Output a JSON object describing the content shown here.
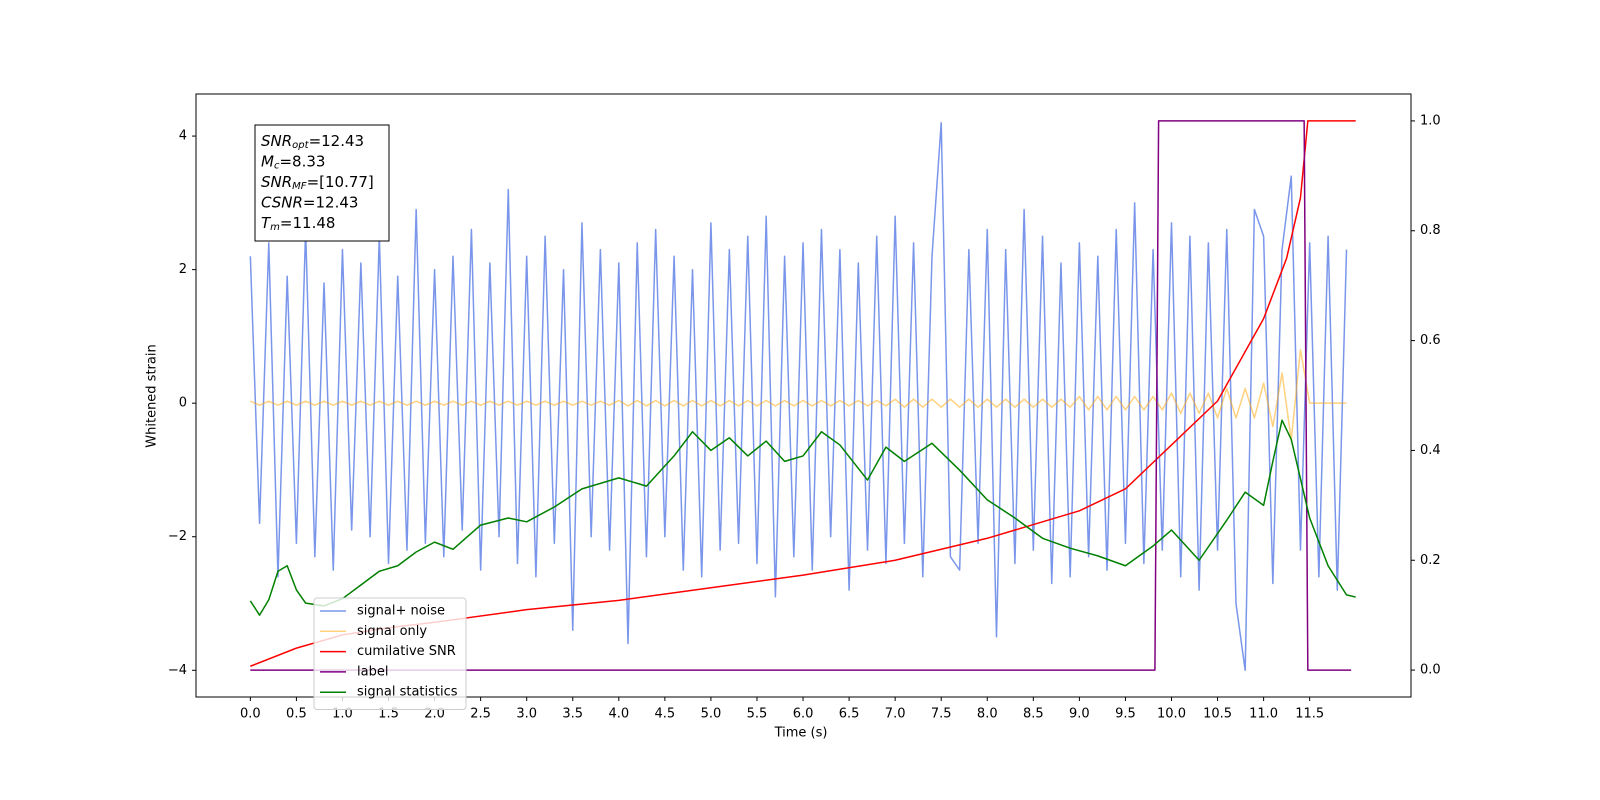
{
  "chart_data": {
    "type": "line",
    "xlabel": "Time (s)",
    "ylabel": "Whitened strain",
    "xlim": [
      -0.59,
      12.6
    ],
    "ylim": [
      -4.4,
      4.63
    ],
    "y2lim": [
      -0.049,
      1.049
    ],
    "xticks": [
      {
        "value": 0,
        "label": "0.0"
      },
      0.5,
      {
        "value": 1,
        "label": "1.0"
      },
      1.5,
      {
        "value": 2,
        "label": "2.0"
      },
      2.5,
      {
        "value": 3,
        "label": "3.0"
      },
      3.5,
      {
        "value": 4,
        "label": "4.0"
      },
      4.5,
      {
        "value": 5,
        "label": "5.0"
      },
      5.5,
      {
        "value": 6,
        "label": "6.0"
      },
      6.5,
      {
        "value": 7,
        "label": "7.0"
      },
      7.5,
      {
        "value": 8,
        "label": "8.0"
      },
      8.5,
      {
        "value": 9,
        "label": "9.0"
      },
      9.5,
      {
        "value": 10,
        "label": "10.0"
      },
      10.5,
      {
        "value": 11,
        "label": "11.0"
      },
      11.5
    ],
    "yticks": [
      {
        "value": -4,
        "label": "−4"
      },
      {
        "value": -2,
        "label": "−2"
      },
      0,
      2,
      4
    ],
    "y2ticks": [
      {
        "value": 0,
        "label": "0.0"
      },
      0.2,
      0.4,
      0.6,
      0.8,
      {
        "value": 1,
        "label": "1.0"
      }
    ],
    "legend": "lower left",
    "annotations": [
      {
        "base": "SNR",
        "sub": "opt",
        "text": "=12.43"
      },
      {
        "base": "M",
        "sub": "c",
        "text": "=8.33"
      },
      {
        "base": "SNR",
        "sub": "MF",
        "text": "=[10.77]"
      },
      {
        "base": "CSNR",
        "text": "=12.43"
      },
      {
        "base": "T",
        "sub": "m",
        "text": "=11.48"
      }
    ],
    "series": [
      {
        "name": "signal+ noise",
        "color": "#4169e1",
        "opacity": 0.7,
        "x": [
          0,
          0.1,
          0.2,
          0.3,
          0.4,
          0.5,
          0.6,
          0.7,
          0.8,
          0.9,
          1,
          1.1,
          1.2,
          1.3,
          1.4,
          1.5,
          1.6,
          1.7,
          1.8,
          1.9,
          2,
          2.1,
          2.2,
          2.3,
          2.4,
          2.5,
          2.6,
          2.7,
          2.8,
          2.9,
          3,
          3.1,
          3.2,
          3.3,
          3.4,
          3.5,
          3.6,
          3.7,
          3.8,
          3.9,
          4,
          4.1,
          4.2,
          4.3,
          4.4,
          4.5,
          4.6,
          4.7,
          4.8,
          4.9,
          5,
          5.1,
          5.2,
          5.3,
          5.4,
          5.5,
          5.6,
          5.7,
          5.8,
          5.9,
          6,
          6.1,
          6.2,
          6.3,
          6.4,
          6.5,
          6.6,
          6.7,
          6.8,
          6.9,
          7,
          7.1,
          7.2,
          7.3,
          7.4,
          7.5,
          7.6,
          7.7,
          7.8,
          7.9,
          8,
          8.1,
          8.2,
          8.3,
          8.4,
          8.5,
          8.6,
          8.7,
          8.8,
          8.9,
          9,
          9.1,
          9.2,
          9.3,
          9.4,
          9.5,
          9.6,
          9.7,
          9.8,
          9.9,
          10,
          10.1,
          10.2,
          10.3,
          10.4,
          10.5,
          10.6,
          10.7,
          10.8,
          10.9,
          11,
          11.1,
          11.2,
          11.3,
          11.4,
          11.5,
          11.6,
          11.7,
          11.8,
          11.9
        ],
        "values": [
          2.2,
          -1.8,
          2.4,
          -2.6,
          1.9,
          -2.1,
          2.6,
          -2.3,
          1.8,
          -2.5,
          2.3,
          -1.9,
          2.1,
          -2.0,
          2.5,
          -2.4,
          1.9,
          -2.2,
          2.9,
          -2.1,
          2.0,
          -2.3,
          2.2,
          -1.9,
          2.6,
          -2.5,
          2.1,
          -2.0,
          3.2,
          -2.4,
          2.2,
          -2.6,
          2.5,
          -2.1,
          2.0,
          -3.4,
          2.7,
          -2.0,
          2.3,
          -2.2,
          2.1,
          -3.6,
          2.4,
          -2.3,
          2.6,
          -2.0,
          2.2,
          -2.5,
          2.0,
          -2.6,
          2.7,
          -2.2,
          2.3,
          -2.1,
          2.5,
          -2.4,
          2.8,
          -2.9,
          2.2,
          -2.3,
          2.4,
          -2.5,
          2.6,
          -2.0,
          2.3,
          -2.8,
          2.1,
          -2.2,
          2.5,
          -2.4,
          2.8,
          -2.1,
          2.4,
          -2.6,
          2.2,
          4.2,
          -2.3,
          -2.5,
          2.3,
          -2.1,
          2.6,
          -3.5,
          2.3,
          -2.4,
          2.9,
          -2.2,
          2.5,
          -2.7,
          2.1,
          -2.6,
          2.4,
          -2.3,
          2.2,
          -2.5,
          2.6,
          -2.1,
          3.0,
          -2.4,
          2.3,
          -2.2,
          2.7,
          -2.6,
          2.5,
          -2.8,
          2.4,
          -2.2,
          2.6,
          -3.0,
          -4.0,
          2.9,
          2.5,
          -2.7,
          2.3,
          3.4,
          -2.2,
          2.4,
          -2.6,
          2.5,
          -2.8,
          2.3
        ]
      },
      {
        "name": "signal only",
        "color": "#ffa500",
        "opacity": 0.5,
        "x": [
          0,
          0.1,
          0.2,
          0.3,
          0.4,
          0.5,
          0.6,
          0.7,
          0.8,
          0.9,
          1,
          1.1,
          1.2,
          1.3,
          1.4,
          1.5,
          1.6,
          1.7,
          1.8,
          1.9,
          2,
          2.1,
          2.2,
          2.3,
          2.4,
          2.5,
          2.6,
          2.7,
          2.8,
          2.9,
          3,
          3.1,
          3.2,
          3.3,
          3.4,
          3.5,
          3.6,
          3.7,
          3.8,
          3.9,
          4,
          4.1,
          4.2,
          4.3,
          4.4,
          4.5,
          4.6,
          4.7,
          4.8,
          4.9,
          5,
          5.1,
          5.2,
          5.3,
          5.4,
          5.5,
          5.6,
          5.7,
          5.8,
          5.9,
          6,
          6.1,
          6.2,
          6.3,
          6.4,
          6.5,
          6.6,
          6.7,
          6.8,
          6.9,
          7,
          7.1,
          7.2,
          7.3,
          7.4,
          7.5,
          7.6,
          7.7,
          7.8,
          7.9,
          8,
          8.1,
          8.2,
          8.3,
          8.4,
          8.5,
          8.6,
          8.7,
          8.8,
          8.9,
          9,
          9.1,
          9.2,
          9.3,
          9.4,
          9.5,
          9.6,
          9.7,
          9.8,
          9.9,
          10,
          10.1,
          10.2,
          10.3,
          10.4,
          10.5,
          10.6,
          10.7,
          10.8,
          10.9,
          11,
          11.1,
          11.2,
          11.3,
          11.4,
          11.5,
          11.6,
          11.7,
          11.8,
          11.9
        ],
        "values": [
          0.03,
          -0.03,
          0.03,
          -0.03,
          0.03,
          -0.03,
          0.03,
          -0.03,
          0.03,
          -0.03,
          0.03,
          -0.03,
          0.03,
          -0.03,
          0.03,
          -0.03,
          0.03,
          -0.03,
          0.03,
          -0.03,
          0.03,
          -0.03,
          0.03,
          -0.03,
          0.03,
          -0.03,
          0.03,
          -0.03,
          0.03,
          -0.03,
          0.03,
          -0.03,
          0.03,
          -0.03,
          0.03,
          -0.03,
          0.03,
          -0.03,
          0.03,
          -0.03,
          0.04,
          -0.04,
          0.04,
          -0.04,
          0.04,
          -0.04,
          0.04,
          -0.04,
          0.04,
          -0.04,
          0.04,
          -0.04,
          0.04,
          -0.04,
          0.04,
          -0.04,
          0.04,
          -0.04,
          0.04,
          -0.04,
          0.04,
          -0.04,
          0.04,
          -0.04,
          0.04,
          -0.04,
          0.04,
          -0.04,
          0.04,
          -0.04,
          0.06,
          -0.06,
          0.06,
          -0.06,
          0.06,
          -0.06,
          0.06,
          -0.06,
          0.06,
          -0.06,
          0.06,
          -0.06,
          0.06,
          -0.06,
          0.06,
          -0.06,
          0.06,
          -0.06,
          0.06,
          -0.06,
          0.1,
          -0.1,
          0.1,
          -0.1,
          0.1,
          -0.1,
          0.1,
          -0.1,
          0.1,
          -0.1,
          0.15,
          -0.15,
          0.15,
          -0.15,
          0.15,
          -0.22,
          0.22,
          -0.22,
          0.22,
          -0.22,
          0.3,
          -0.35,
          0.45,
          -0.55,
          0.8,
          0,
          0,
          0,
          0,
          0
        ]
      },
      {
        "name": "cumilative SNR",
        "color": "#ff0000",
        "axis": "y2",
        "x": [
          0,
          0.5,
          1,
          1.5,
          2,
          3,
          4,
          5,
          6,
          7,
          8,
          9,
          9.5,
          10,
          10.5,
          11,
          11.25,
          11.4,
          11.48,
          12.0
        ],
        "values": [
          0.007,
          0.04,
          0.064,
          0.077,
          0.087,
          0.11,
          0.127,
          0.15,
          0.173,
          0.2,
          0.24,
          0.29,
          0.33,
          0.41,
          0.49,
          0.64,
          0.75,
          0.86,
          1.0,
          1.0
        ]
      },
      {
        "name": "label",
        "color": "#800080",
        "axis": "y2",
        "x": [
          0,
          9.82,
          9.86,
          11.44,
          11.48,
          11.95
        ],
        "values": [
          0,
          0,
          1,
          1,
          0,
          0
        ]
      },
      {
        "name": "signal statistics",
        "color": "#008000",
        "axis": "y2",
        "x": [
          0,
          0.1,
          0.2,
          0.3,
          0.4,
          0.5,
          0.6,
          0.8,
          1.0,
          1.2,
          1.4,
          1.6,
          1.8,
          2.0,
          2.2,
          2.5,
          2.8,
          3.0,
          3.3,
          3.6,
          4.0,
          4.3,
          4.6,
          4.8,
          5.0,
          5.2,
          5.4,
          5.6,
          5.8,
          6.0,
          6.2,
          6.4,
          6.7,
          6.9,
          7.1,
          7.4,
          7.7,
          8.0,
          8.3,
          8.6,
          8.9,
          9.2,
          9.5,
          9.8,
          10.0,
          10.3,
          10.6,
          10.8,
          11.0,
          11.1,
          11.2,
          11.3,
          11.5,
          11.7,
          11.9,
          12.0
        ],
        "values": [
          0.126,
          0.1,
          0.128,
          0.18,
          0.19,
          0.146,
          0.122,
          0.117,
          0.13,
          0.155,
          0.18,
          0.19,
          0.215,
          0.233,
          0.22,
          0.264,
          0.277,
          0.27,
          0.297,
          0.33,
          0.35,
          0.335,
          0.39,
          0.434,
          0.4,
          0.423,
          0.39,
          0.417,
          0.38,
          0.39,
          0.434,
          0.41,
          0.346,
          0.406,
          0.38,
          0.413,
          0.364,
          0.31,
          0.277,
          0.24,
          0.222,
          0.208,
          0.19,
          0.226,
          0.255,
          0.2,
          0.273,
          0.324,
          0.3,
          0.38,
          0.455,
          0.42,
          0.277,
          0.19,
          0.137,
          0.133
        ]
      }
    ]
  }
}
